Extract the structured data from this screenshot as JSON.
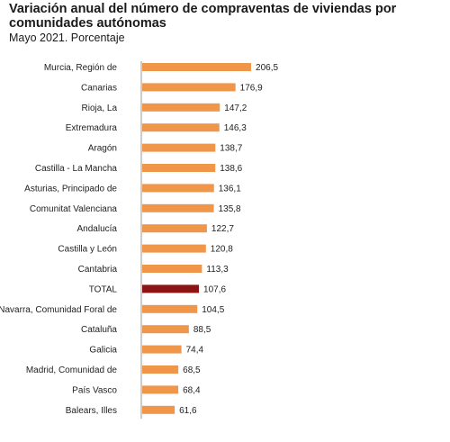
{
  "title": "Variación anual del número de compraventas de viviendas por comunidades autónomas",
  "subtitle": "Mayo 2021. Porcentaje",
  "colors": {
    "bar": "#f0964a",
    "highlight": "#8b1414"
  },
  "chart_data": {
    "type": "bar",
    "orientation": "horizontal",
    "title": "Variación anual del número de compraventas de viviendas por comunidades autónomas",
    "subtitle": "Mayo 2021. Porcentaje",
    "categories": [
      "Murcia, Región de",
      "Canarias",
      "Rioja, La",
      "Extremadura",
      "Aragón",
      "Castilla - La Mancha",
      "Asturias, Principado de",
      "Comunitat Valenciana",
      "Andalucía",
      "Castilla y León",
      "Cantabria",
      "TOTAL",
      "Navarra, Comunidad Foral de",
      "Cataluña",
      "Galicia",
      "Madrid, Comunidad de",
      "País Vasco",
      "Balears, Illes"
    ],
    "values": [
      206.5,
      176.9,
      147.2,
      146.3,
      138.7,
      138.6,
      136.1,
      135.8,
      122.7,
      120.8,
      113.3,
      107.6,
      104.5,
      88.5,
      74.4,
      68.5,
      68.4,
      61.6
    ],
    "value_labels": [
      "206,5",
      "176,9",
      "147,2",
      "146,3",
      "138,7",
      "138,6",
      "136,1",
      "135,8",
      "122,7",
      "120,8",
      "113,3",
      "107,6",
      "104,5",
      "88,5",
      "74,4",
      "68,5",
      "68,4",
      "61,6"
    ],
    "highlight_category": "TOTAL",
    "xlim": [
      0,
      215
    ],
    "grid": false,
    "legend": "none"
  }
}
